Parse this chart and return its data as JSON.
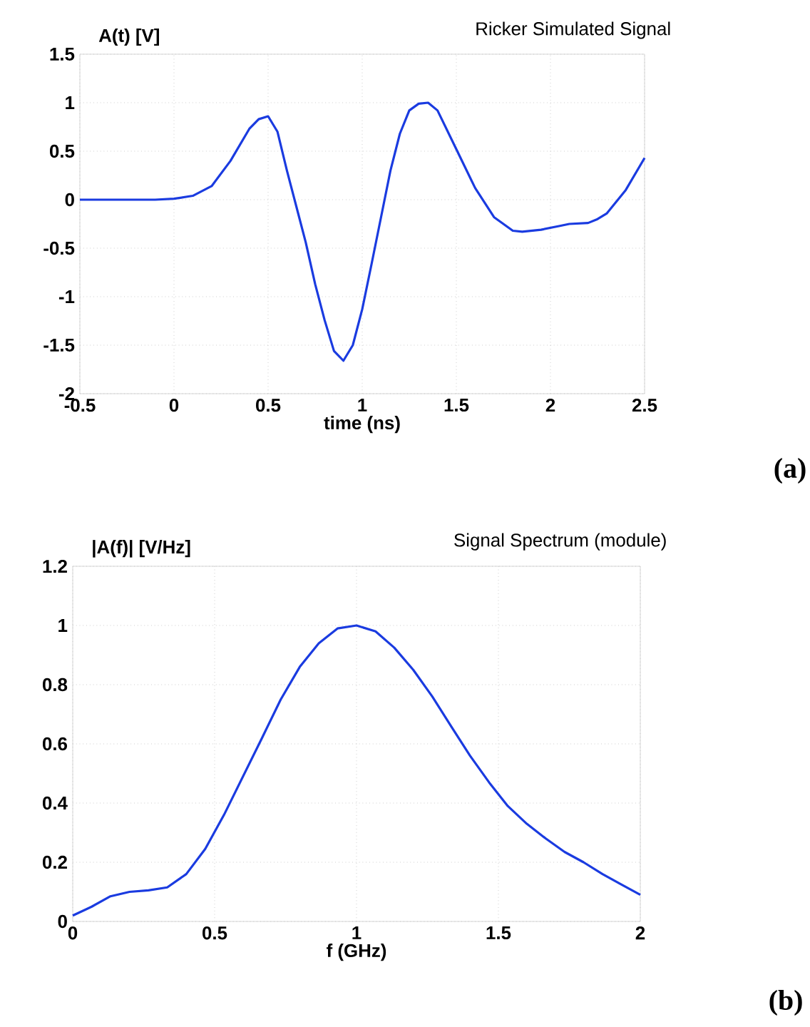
{
  "chart_data": [
    {
      "type": "line",
      "title": "Ricker Simulated Signal",
      "ylabel": "A(t) [V]",
      "xlabel": "time (ns)",
      "color": "#1a3be0",
      "grid": true,
      "xlim": [
        -0.5,
        2.5
      ],
      "ylim": [
        -2,
        1.5
      ],
      "xticks": [
        -0.5,
        0,
        0.5,
        1,
        1.5,
        2,
        2.5
      ],
      "yticks": [
        -2,
        -1.5,
        -1,
        -0.5,
        0,
        0.5,
        1,
        1.5
      ],
      "annotations": [
        "(a)"
      ],
      "x": [
        -0.5,
        -0.3,
        -0.1,
        0,
        0.1,
        0.2,
        0.3,
        0.4,
        0.45,
        0.5,
        0.55,
        0.6,
        0.65,
        0.7,
        0.75,
        0.8,
        0.85,
        0.9,
        0.95,
        1.0,
        1.05,
        1.1,
        1.15,
        1.2,
        1.25,
        1.3,
        1.35,
        1.4,
        1.5,
        1.6,
        1.7,
        1.8,
        1.85,
        1.95,
        2.05,
        2.1,
        2.2,
        2.25,
        2.3,
        2.4,
        2.5
      ],
      "values": [
        0,
        0,
        0,
        0.01,
        0.04,
        0.14,
        0.4,
        0.73,
        0.83,
        0.86,
        0.7,
        0.3,
        -0.07,
        -0.44,
        -0.87,
        -1.24,
        -1.56,
        -1.66,
        -1.5,
        -1.13,
        -0.66,
        -0.18,
        0.3,
        0.68,
        0.92,
        0.99,
        1.0,
        0.92,
        0.52,
        0.12,
        -0.18,
        -0.32,
        -0.33,
        -0.31,
        -0.27,
        -0.25,
        -0.24,
        -0.2,
        -0.14,
        0.1,
        0.43
      ]
    },
    {
      "type": "line",
      "title": "Signal Spectrum (module)",
      "ylabel": "|A(f)|  [V/Hz]",
      "xlabel": "f (GHz)",
      "color": "#1a3be0",
      "grid": true,
      "xlim": [
        0,
        2
      ],
      "ylim": [
        0,
        1.2
      ],
      "xticks": [
        0,
        0.5,
        1,
        1.5,
        2
      ],
      "yticks": [
        0,
        0.2,
        0.4,
        0.6,
        0.8,
        1,
        1.2
      ],
      "annotations": [
        "(b)"
      ],
      "x": [
        0,
        0.067,
        0.133,
        0.2,
        0.267,
        0.333,
        0.4,
        0.467,
        0.533,
        0.6,
        0.667,
        0.733,
        0.8,
        0.867,
        0.933,
        1.0,
        1.067,
        1.133,
        1.2,
        1.267,
        1.333,
        1.4,
        1.467,
        1.533,
        1.6,
        1.667,
        1.733,
        1.8,
        1.867,
        1.933,
        2.0
      ],
      "values": [
        0.02,
        0.05,
        0.085,
        0.1,
        0.105,
        0.115,
        0.16,
        0.245,
        0.36,
        0.49,
        0.62,
        0.75,
        0.86,
        0.94,
        0.99,
        1.0,
        0.98,
        0.925,
        0.85,
        0.76,
        0.66,
        0.56,
        0.47,
        0.39,
        0.33,
        0.28,
        0.235,
        0.2,
        0.16,
        0.125,
        0.09
      ]
    }
  ]
}
